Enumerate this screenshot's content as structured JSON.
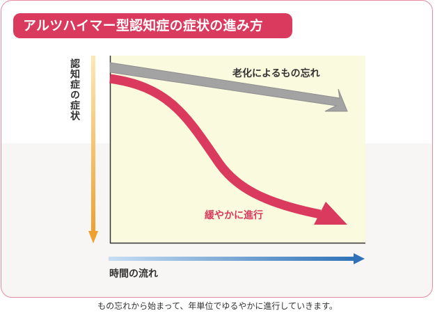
{
  "title": "アルツハイマー型認知症の症状の進み方",
  "y_axis_label": "認知症の症状",
  "x_axis_label": "時間の流れ",
  "curves": {
    "aging": {
      "label": "老化によるもの忘れ",
      "color": "#a3a3a3"
    },
    "alzheimer": {
      "label": "緩やかに進行",
      "color": "#d93a5e"
    }
  },
  "colors": {
    "accent": "#d93a5e",
    "plot_background": "#fafadf",
    "y_arrow": "#f0a030",
    "x_arrow": "#2f72b8"
  },
  "caption": "もの忘れから始まって、年単位でゆるやかに進行していきます。"
}
